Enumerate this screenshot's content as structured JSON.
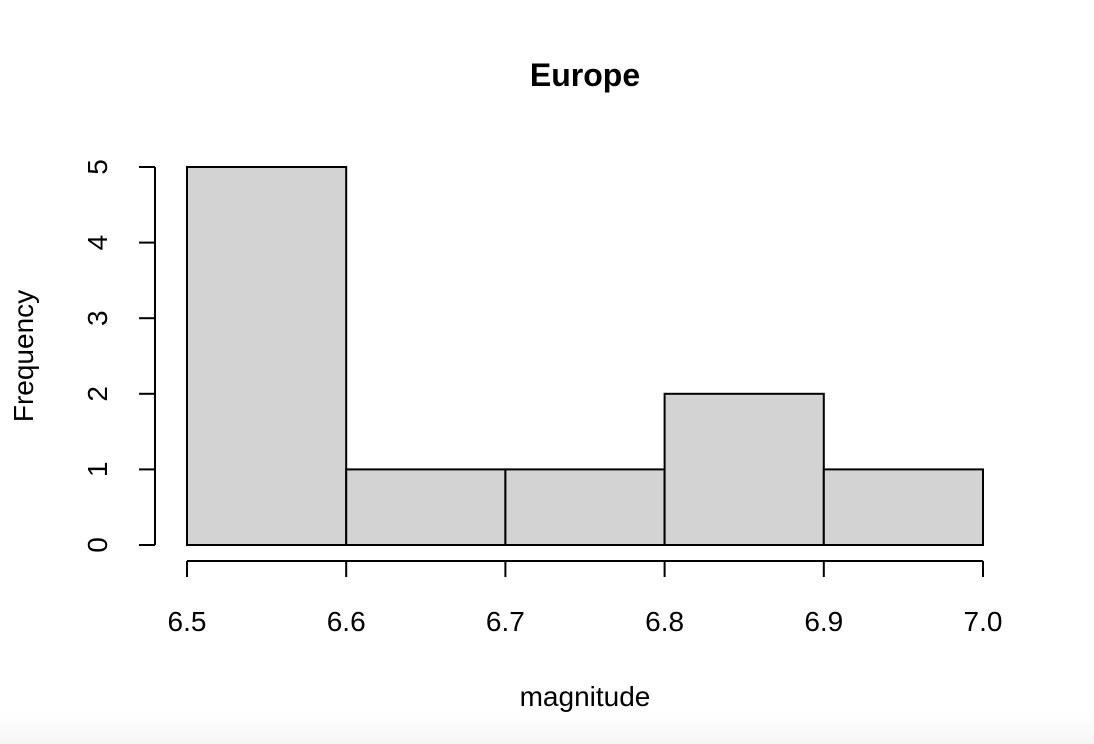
{
  "chart_data": {
    "type": "bar",
    "title": "Europe",
    "xlabel": "magnitude",
    "ylabel": "Frequency",
    "bins": [
      {
        "start": 6.5,
        "end": 6.6,
        "count": 5
      },
      {
        "start": 6.6,
        "end": 6.7,
        "count": 1
      },
      {
        "start": 6.7,
        "end": 6.8,
        "count": 1
      },
      {
        "start": 6.8,
        "end": 6.9,
        "count": 2
      },
      {
        "start": 6.9,
        "end": 7.0,
        "count": 1
      }
    ],
    "x_ticks": [
      "6.5",
      "6.6",
      "6.7",
      "6.8",
      "6.9",
      "7.0"
    ],
    "y_ticks": [
      "0",
      "1",
      "2",
      "3",
      "4",
      "5"
    ],
    "xlim": [
      6.5,
      7.0
    ],
    "ylim": [
      0,
      5
    ],
    "grid": false,
    "bar_fill": "#d3d3d3",
    "bar_stroke": "#000000"
  }
}
